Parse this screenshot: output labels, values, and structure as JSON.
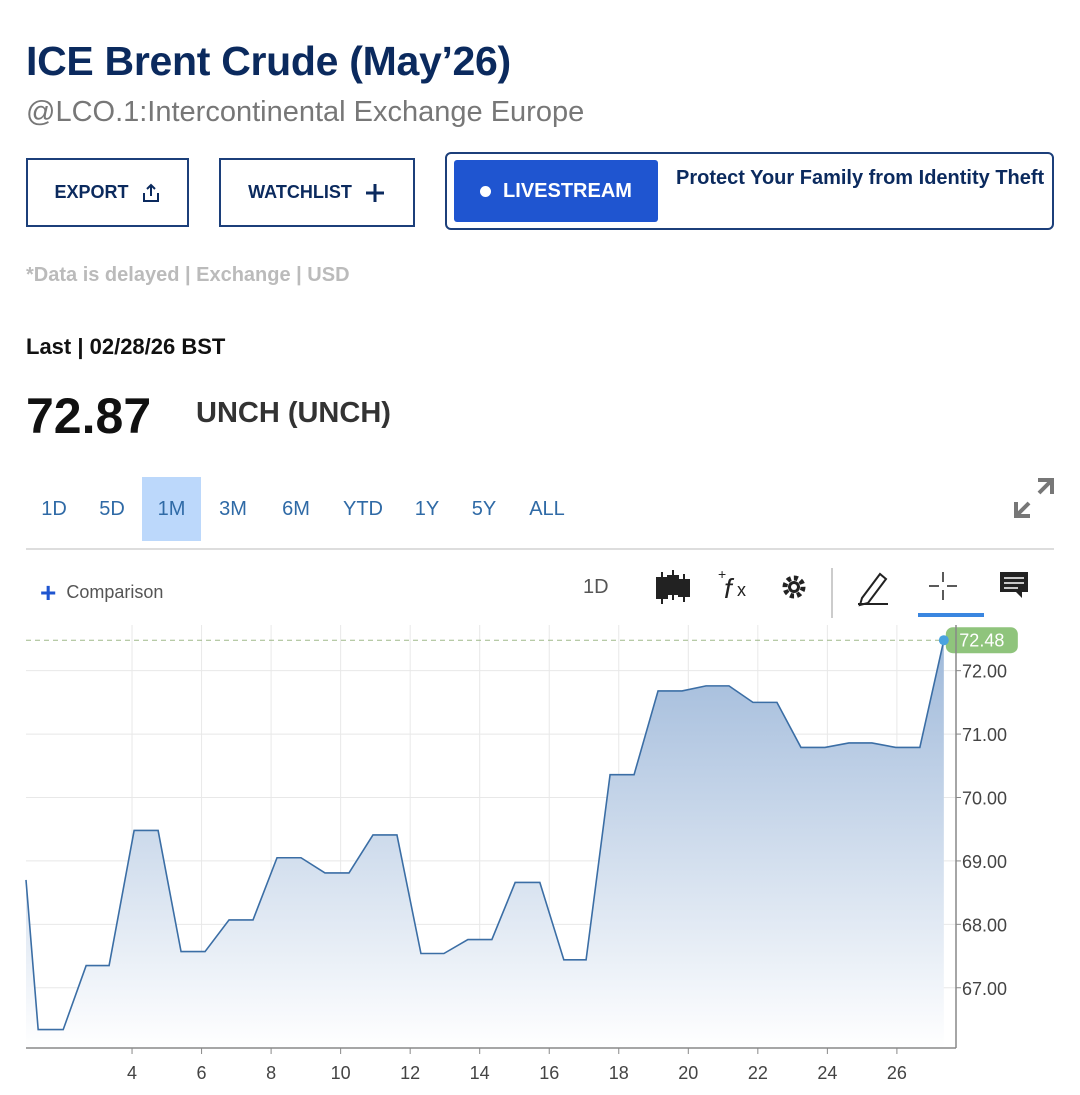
{
  "header": {
    "title": "ICE Brent Crude (May’26)",
    "subtitle": "@LCO.1:Intercontinental Exchange Europe"
  },
  "buttons": {
    "export": "EXPORT",
    "watchlist": "WATCHLIST",
    "livestream": "LIVESTREAM"
  },
  "ad": "Protect Your Family from Identity Theft",
  "disclaimer": "*Data is delayed | Exchange | USD",
  "quote": {
    "last_label": "Last | 02/28/26 BST",
    "price": "72.87",
    "change": "UNCH (UNCH)"
  },
  "ranges": [
    "1D",
    "5D",
    "1M",
    "3M",
    "6M",
    "YTD",
    "1Y",
    "5Y",
    "ALL"
  ],
  "selected_range": "1M",
  "toolbar": {
    "comparison": "Comparison",
    "interval": "1D"
  },
  "chart_data": {
    "type": "line",
    "color": "#3b6ea5",
    "x": [
      0.95,
      1.3,
      2.02,
      2.68,
      3.34,
      4.06,
      4.75,
      5.41,
      6.1,
      6.79,
      7.48,
      8.17,
      8.86,
      9.55,
      10.24,
      10.93,
      11.62,
      12.31,
      12.97,
      13.66,
      14.35,
      15.02,
      15.73,
      16.42,
      17.06,
      17.75,
      18.44,
      19.13,
      19.82,
      20.51,
      21.17,
      21.86,
      22.55,
      23.24,
      23.93,
      24.62,
      25.28,
      25.97,
      26.66,
      27.35
    ],
    "values": [
      68.7,
      66.34,
      66.34,
      67.35,
      67.35,
      69.48,
      69.48,
      67.57,
      67.57,
      68.07,
      68.07,
      69.05,
      69.05,
      68.81,
      68.81,
      69.41,
      69.41,
      67.54,
      67.54,
      67.76,
      67.76,
      68.66,
      68.66,
      67.44,
      67.44,
      70.36,
      70.36,
      71.68,
      71.68,
      71.76,
      71.76,
      71.5,
      71.5,
      70.79,
      70.79,
      70.86,
      70.86,
      70.79,
      70.79,
      72.48
    ],
    "xlim": [
      0.95,
      27.7
    ],
    "ylim": [
      66.05,
      72.72
    ],
    "xticks": [
      4,
      6,
      8,
      10,
      12,
      14,
      16,
      18,
      20,
      22,
      24,
      26
    ],
    "yticks": [
      {
        "value": 67,
        "label": "67.00"
      },
      {
        "value": 68,
        "label": "68.00"
      },
      {
        "value": 69,
        "label": "69.00"
      },
      {
        "value": 70,
        "label": "70.00"
      },
      {
        "value": 71,
        "label": "71.00"
      },
      {
        "value": 72,
        "label": "72.00"
      }
    ],
    "grid": true
  }
}
